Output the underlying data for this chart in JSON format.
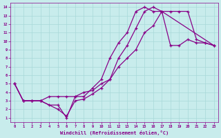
{
  "xlabel": "Windchill (Refroidissement éolien,°C)",
  "xlim": [
    -0.5,
    23.5
  ],
  "ylim": [
    0.5,
    14.5
  ],
  "xticks": [
    0,
    1,
    2,
    3,
    4,
    5,
    6,
    7,
    8,
    9,
    10,
    11,
    12,
    13,
    14,
    15,
    16,
    17,
    18,
    19,
    20,
    21,
    22,
    23
  ],
  "yticks": [
    1,
    2,
    3,
    4,
    5,
    6,
    7,
    8,
    9,
    10,
    11,
    12,
    13,
    14
  ],
  "bg_color": "#c8ecec",
  "line_color": "#880088",
  "grid_color": "#a8d8d8",
  "series": [
    {
      "x": [
        0,
        1,
        2,
        3,
        4,
        5,
        6,
        7,
        8,
        9,
        10,
        11,
        12,
        13,
        14,
        15,
        16,
        17,
        23
      ],
      "y": [
        5.0,
        3.0,
        3.0,
        3.0,
        2.5,
        2.5,
        1.0,
        3.5,
        3.5,
        4.5,
        5.5,
        8.0,
        9.8,
        11.0,
        13.5,
        14.0,
        13.5,
        13.5,
        9.5
      ]
    },
    {
      "x": [
        0,
        1,
        2,
        3,
        4,
        5,
        6,
        7,
        8,
        9,
        10,
        11,
        12,
        13,
        14,
        15,
        16,
        17,
        18,
        19,
        20,
        21,
        22,
        23
      ],
      "y": [
        5.0,
        3.0,
        3.0,
        3.0,
        3.5,
        3.5,
        3.5,
        3.5,
        4.0,
        4.2,
        5.0,
        5.5,
        7.0,
        8.0,
        9.0,
        11.0,
        11.8,
        13.5,
        13.5,
        13.5,
        13.5,
        10.2,
        9.8,
        9.5
      ]
    },
    {
      "x": [
        0,
        1,
        2,
        3,
        5,
        6,
        7,
        8,
        9,
        10,
        11,
        12,
        13,
        14,
        15,
        16,
        17,
        18,
        19,
        20,
        21,
        22,
        23
      ],
      "y": [
        5.0,
        3.0,
        3.0,
        3.0,
        2.0,
        1.2,
        3.0,
        3.2,
        3.8,
        4.5,
        5.5,
        8.0,
        9.5,
        11.5,
        13.5,
        14.0,
        13.5,
        9.5,
        9.5,
        10.2,
        9.8,
        9.8,
        9.5
      ]
    }
  ]
}
